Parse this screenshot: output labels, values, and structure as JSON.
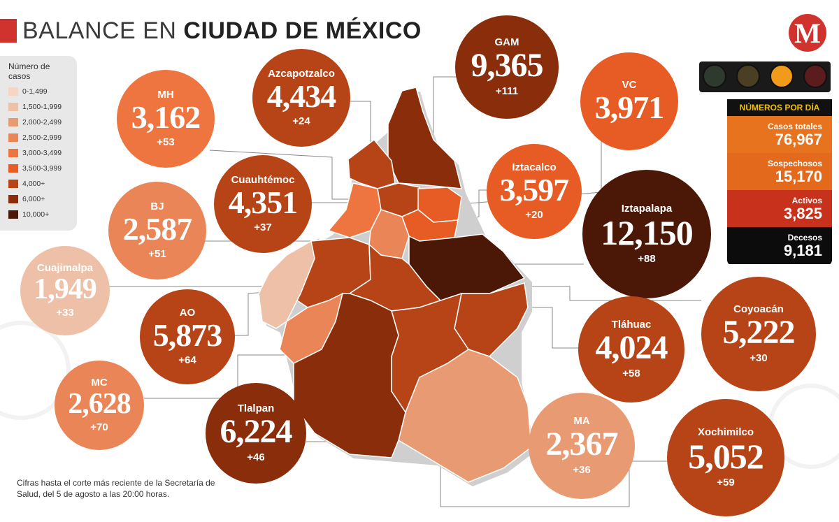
{
  "title": {
    "part1": "BALANCE EN",
    "part2": "CIUDAD DE MÉXICO"
  },
  "legend": {
    "title": "Número de casos",
    "items": [
      {
        "label": "0-1,499",
        "color": "#f6d5c5"
      },
      {
        "label": "1,500-1,999",
        "color": "#efc0a8"
      },
      {
        "label": "2,000-2,499",
        "color": "#e89b73"
      },
      {
        "label": "2,500-2,999",
        "color": "#ea8558"
      },
      {
        "label": "3,000-3,499",
        "color": "#ee7440"
      },
      {
        "label": "3,500-3,999",
        "color": "#e65c24"
      },
      {
        "label": "4,000+",
        "color": "#b64416"
      },
      {
        "label": "6,000+",
        "color": "#8a2d0b"
      },
      {
        "label": "10,000+",
        "color": "#4b1706"
      }
    ]
  },
  "boroughs": [
    {
      "name": "MH",
      "value": "3,162",
      "increase": "+53",
      "color": "#ee7440"
    },
    {
      "name": "Azcapotzalco",
      "value": "4,434",
      "increase": "+24",
      "color": "#b64416"
    },
    {
      "name": "GAM",
      "value": "9,365",
      "increase": "+111",
      "color": "#8a2d0b"
    },
    {
      "name": "VC",
      "value": "3,971",
      "increase": "",
      "color": "#e65c24"
    },
    {
      "name": "Iztacalco",
      "value": "3,597",
      "increase": "+20",
      "color": "#e65c24"
    },
    {
      "name": "Cuauhtémoc",
      "value": "4,351",
      "increase": "+37",
      "color": "#b64416"
    },
    {
      "name": "BJ",
      "value": "2,587",
      "increase": "+51",
      "color": "#ea8558"
    },
    {
      "name": "Iztapalapa",
      "value": "12,150",
      "increase": "+88",
      "color": "#4b1706"
    },
    {
      "name": "Cuajimalpa",
      "value": "1,949",
      "increase": "+33",
      "color": "#efc0a8"
    },
    {
      "name": "AO",
      "value": "5,873",
      "increase": "+64",
      "color": "#b64416"
    },
    {
      "name": "Coyoacán",
      "value": "5,222",
      "increase": "+30",
      "color": "#b64416"
    },
    {
      "name": "Tláhuac",
      "value": "4,024",
      "increase": "+58",
      "color": "#b64416"
    },
    {
      "name": "MC",
      "value": "2,628",
      "increase": "+70",
      "color": "#ea8558"
    },
    {
      "name": "Tlalpan",
      "value": "6,224",
      "increase": "+46",
      "color": "#8a2d0b"
    },
    {
      "name": "MA",
      "value": "2,367",
      "increase": "+36",
      "color": "#e89b73"
    },
    {
      "name": "Xochimilco",
      "value": "5,052",
      "increase": "+59",
      "color": "#b64416"
    }
  ],
  "stats": {
    "header": "NÚMEROS POR DÍA",
    "items": [
      {
        "label": "Casos totales",
        "value": "76,967",
        "color": "#e8731e"
      },
      {
        "label": "Sospechosos",
        "value": "15,170",
        "color": "#e36a1c"
      },
      {
        "label": "Activos",
        "value": "3,825",
        "color": "#c8321c"
      },
      {
        "label": "Decesos",
        "value": "9,181",
        "color": "#0c0c0c"
      }
    ]
  },
  "traffic_light": [
    "#2f3a2f",
    "#4a3f22",
    "#f29a1a",
    "#5a1c1c"
  ],
  "logo_letter": "M",
  "footnote": "Cifras hasta el corte más reciente de la Secretaría de Salud, del 5 de agosto a las 20:00 horas."
}
